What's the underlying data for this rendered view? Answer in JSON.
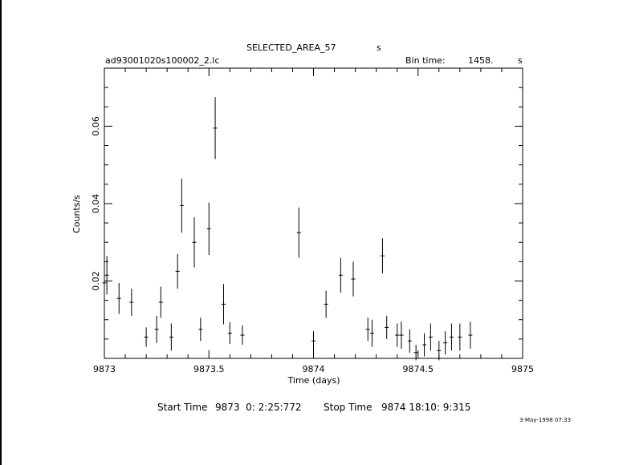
{
  "header": {
    "title": "SELECTED_AREA_57",
    "title_unit": "s",
    "filename": "ad93001020s100002_2.lc",
    "bin_label": "Bin time:",
    "bin_value": "1458.",
    "bin_unit": "s"
  },
  "footer": {
    "start_label": "Start Time",
    "start_value": "9873  0: 2:25:772",
    "stop_label": "Stop Time",
    "stop_value": "9874 18:10: 9:315",
    "date_stamp": "3-May-1998 07:33"
  },
  "chart_data": {
    "type": "scatter",
    "xlabel": "Time (days)",
    "ylabel": "Counts/s",
    "xlim": [
      9873,
      9875
    ],
    "ylim": [
      0,
      0.075
    ],
    "xticks": [
      9873,
      9873.5,
      9874,
      9874.5,
      9875
    ],
    "xticklabels": [
      "9873",
      "9873.5",
      "9874",
      "9874.5",
      "9875"
    ],
    "yticks": [
      0.02,
      0.04,
      0.06
    ],
    "yticklabels": [
      "0.02",
      "0.04",
      "0.06"
    ],
    "grid": false,
    "points": [
      {
        "x": 9873.0,
        "y": 0.0195,
        "yerr": 0.0035
      },
      {
        "x": 9873.012,
        "y": 0.0215,
        "yerr": 0.005
      },
      {
        "x": 9873.07,
        "y": 0.0155,
        "yerr": 0.004
      },
      {
        "x": 9873.13,
        "y": 0.0145,
        "yerr": 0.0035
      },
      {
        "x": 9873.2,
        "y": 0.0055,
        "yerr": 0.0025
      },
      {
        "x": 9873.25,
        "y": 0.0075,
        "yerr": 0.0035
      },
      {
        "x": 9873.27,
        "y": 0.0145,
        "yerr": 0.004
      },
      {
        "x": 9873.32,
        "y": 0.0055,
        "yerr": 0.0035
      },
      {
        "x": 9873.35,
        "y": 0.0225,
        "yerr": 0.0045
      },
      {
        "x": 9873.37,
        "y": 0.0395,
        "yerr": 0.007
      },
      {
        "x": 9873.43,
        "y": 0.03,
        "yerr": 0.0065
      },
      {
        "x": 9873.46,
        "y": 0.0075,
        "yerr": 0.003
      },
      {
        "x": 9873.5,
        "y": 0.0335,
        "yerr": 0.0068
      },
      {
        "x": 9873.53,
        "y": 0.0595,
        "yerr": 0.008
      },
      {
        "x": 9873.57,
        "y": 0.014,
        "yerr": 0.0052
      },
      {
        "x": 9873.6,
        "y": 0.0065,
        "yerr": 0.0028
      },
      {
        "x": 9873.66,
        "y": 0.006,
        "yerr": 0.0025
      },
      {
        "x": 9873.93,
        "y": 0.0325,
        "yerr": 0.0065
      },
      {
        "x": 9874.0,
        "y": 0.0045,
        "yerr": 0.0025
      },
      {
        "x": 9874.06,
        "y": 0.014,
        "yerr": 0.0035
      },
      {
        "x": 9874.13,
        "y": 0.0215,
        "yerr": 0.0045
      },
      {
        "x": 9874.19,
        "y": 0.0205,
        "yerr": 0.0045
      },
      {
        "x": 9874.26,
        "y": 0.0075,
        "yerr": 0.003
      },
      {
        "x": 9874.28,
        "y": 0.0065,
        "yerr": 0.0035
      },
      {
        "x": 9874.33,
        "y": 0.0265,
        "yerr": 0.0045
      },
      {
        "x": 9874.35,
        "y": 0.008,
        "yerr": 0.003
      },
      {
        "x": 9874.4,
        "y": 0.006,
        "yerr": 0.003
      },
      {
        "x": 9874.42,
        "y": 0.006,
        "yerr": 0.0035
      },
      {
        "x": 9874.46,
        "y": 0.0045,
        "yerr": 0.003
      },
      {
        "x": 9874.49,
        "y": 0.0015,
        "yerr": 0.002
      },
      {
        "x": 9874.53,
        "y": 0.0035,
        "yerr": 0.003
      },
      {
        "x": 9874.56,
        "y": 0.0055,
        "yerr": 0.0035
      },
      {
        "x": 9874.6,
        "y": 0.002,
        "yerr": 0.0025
      },
      {
        "x": 9874.63,
        "y": 0.004,
        "yerr": 0.003
      },
      {
        "x": 9874.66,
        "y": 0.0055,
        "yerr": 0.0035
      },
      {
        "x": 9874.7,
        "y": 0.0055,
        "yerr": 0.0035
      },
      {
        "x": 9874.75,
        "y": 0.006,
        "yerr": 0.0035
      }
    ]
  }
}
